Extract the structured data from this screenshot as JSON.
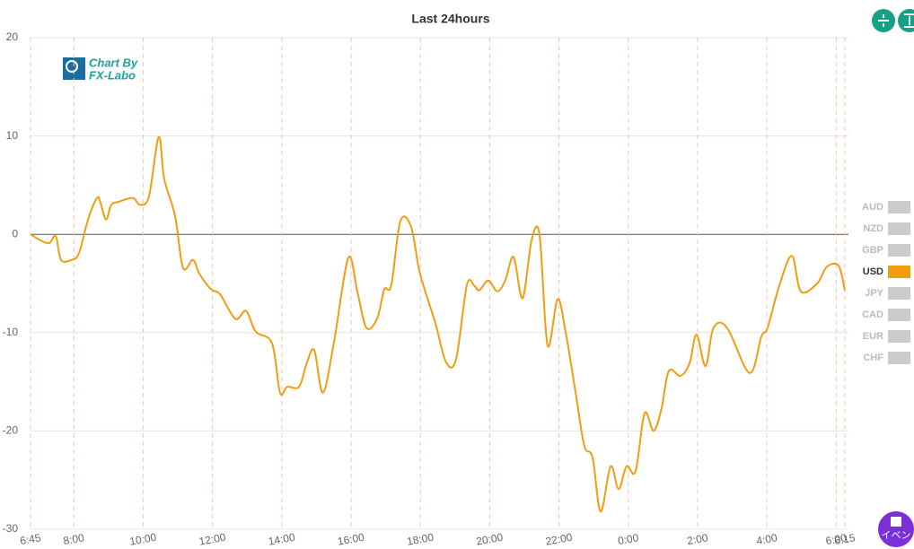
{
  "chart_data": {
    "type": "line",
    "title": "Last 24hours",
    "watermark": [
      "Chart By",
      "FX-Labo"
    ],
    "x": [
      6.75,
      7.03,
      7.29,
      7.48,
      7.63,
      7.94,
      8.15,
      8.41,
      8.67,
      8.77,
      8.93,
      9.08,
      9.29,
      9.7,
      9.91,
      10.17,
      10.45,
      10.61,
      10.92,
      11.15,
      11.44,
      11.62,
      11.96,
      12.22,
      12.66,
      12.97,
      13.25,
      13.72,
      13.95,
      14.16,
      14.5,
      14.73,
      14.94,
      15.19,
      15.51,
      15.92,
      16.18,
      16.44,
      16.75,
      16.96,
      17.16,
      17.42,
      17.73,
      17.99,
      18.43,
      18.74,
      19.03,
      19.34,
      19.55,
      19.7,
      19.96,
      20.22,
      20.45,
      20.69,
      20.95,
      21.21,
      21.44,
      21.67,
      21.96,
      22.19,
      22.48,
      22.73,
      22.97,
      23.2,
      23.49,
      23.72,
      23.95,
      24.21,
      24.47,
      24.73,
      24.96,
      25.17,
      25.51,
      25.77,
      25.97,
      26.23,
      26.46,
      26.85,
      27.5,
      27.84,
      28.02,
      28.36,
      28.72,
      28.98,
      29.45,
      29.73,
      30.07,
      30.25
    ],
    "series": [
      {
        "name": "USD",
        "color": "#f39c12",
        "values": [
          0,
          -0.6,
          -0.9,
          -0.2,
          -2.6,
          -2.6,
          -1.9,
          1.5,
          3.7,
          3.2,
          1.5,
          3.0,
          3.3,
          3.7,
          3.0,
          3.9,
          9.9,
          5.6,
          1.9,
          -3.4,
          -2.6,
          -4.0,
          -5.6,
          -6.1,
          -8.6,
          -7.8,
          -9.9,
          -11.1,
          -16.1,
          -15.5,
          -15.5,
          -13.0,
          -11.8,
          -16.1,
          -10.9,
          -2.4,
          -5.8,
          -9.5,
          -8.6,
          -5.6,
          -5.2,
          1.3,
          0.8,
          -4.0,
          -9.0,
          -13.0,
          -12.7,
          -5.2,
          -5.2,
          -5.7,
          -4.7,
          -5.8,
          -4.7,
          -2.3,
          -6.5,
          -0.6,
          -0.1,
          -11.3,
          -6.6,
          -9.9,
          -16.1,
          -21.5,
          -22.7,
          -28.2,
          -23.6,
          -25.9,
          -23.6,
          -24.1,
          -18.2,
          -20.0,
          -17.7,
          -13.9,
          -14.4,
          -13.1,
          -10.2,
          -13.4,
          -9.5,
          -9.5,
          -14.1,
          -10.4,
          -9.5,
          -5.2,
          -2.2,
          -5.8,
          -5.0,
          -3.3,
          -3.2,
          -5.7
        ]
      }
    ],
    "legend": [
      {
        "name": "AUD",
        "color": "#cccccc"
      },
      {
        "name": "NZD",
        "color": "#cccccc"
      },
      {
        "name": "GBP",
        "color": "#cccccc"
      },
      {
        "name": "USD",
        "color": "#f39c12"
      },
      {
        "name": "JPY",
        "color": "#cccccc"
      },
      {
        "name": "CAD",
        "color": "#cccccc"
      },
      {
        "name": "EUR",
        "color": "#cccccc"
      },
      {
        "name": "CHF",
        "color": "#cccccc"
      }
    ],
    "xlim": [
      6.75,
      30.25
    ],
    "xticks": [
      {
        "value": 6.75,
        "label": "6:45"
      },
      {
        "value": 8,
        "label": "8:00"
      },
      {
        "value": 10,
        "label": "10:00"
      },
      {
        "value": 12,
        "label": "12:00"
      },
      {
        "value": 14,
        "label": "14:00"
      },
      {
        "value": 16,
        "label": "16:00"
      },
      {
        "value": 18,
        "label": "18:00"
      },
      {
        "value": 20,
        "label": "20:00"
      },
      {
        "value": 22,
        "label": "22:00"
      },
      {
        "value": 24,
        "label": "0:00"
      },
      {
        "value": 26,
        "label": "2:00"
      },
      {
        "value": 28,
        "label": "4:00"
      },
      {
        "value": 30,
        "label": "6:00"
      },
      {
        "value": 30.25,
        "label": "6:15"
      }
    ],
    "ylim": [
      -30,
      20
    ],
    "yticks": [
      -30,
      -20,
      -10,
      0,
      10,
      20
    ],
    "grid": true
  },
  "ui": {
    "event_button": "イベン"
  }
}
